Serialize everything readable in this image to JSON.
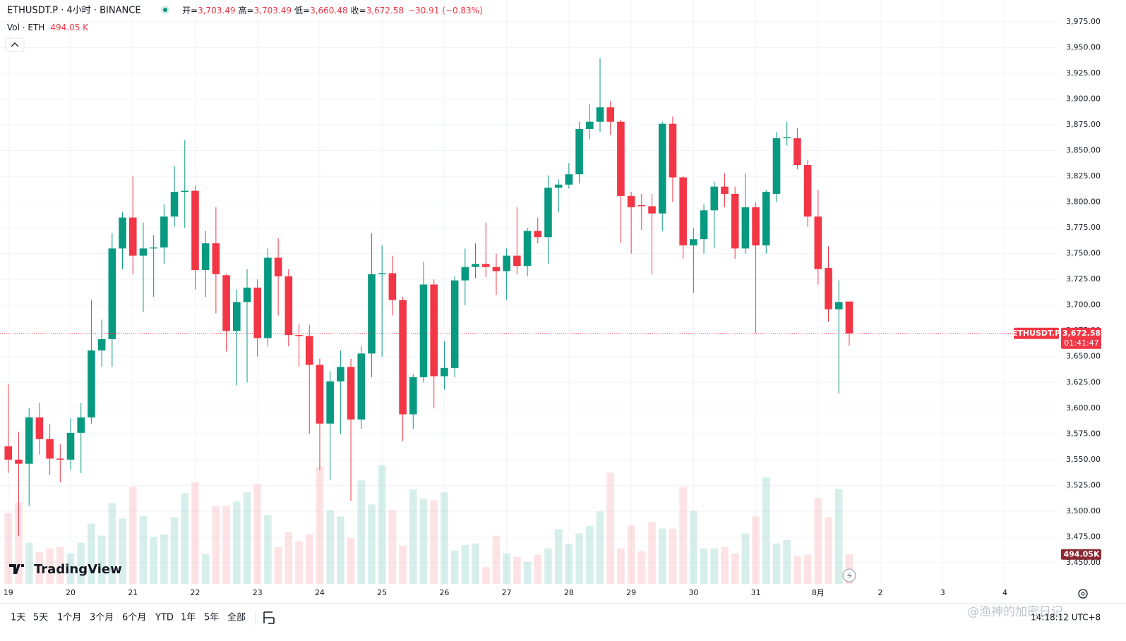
{
  "header": {
    "symbol": "ETHUSDT.P · 4小时 · BINANCE",
    "open_label": "开=",
    "open": "3,703.49",
    "high_label": "高=",
    "high": "3,703.49",
    "low_label": "低=",
    "low": "3,660.48",
    "close_label": "收=",
    "close": "3,672.58",
    "change": "−30.91 (−0.83%)",
    "vol_label": "Vol · ETH",
    "vol": "494.05 K"
  },
  "chart_data": {
    "type": "candlestick",
    "up_color": "#089981",
    "down_color": "#f23645",
    "open": [
      3563,
      3550,
      3546,
      3591,
      3570,
      3551,
      3550,
      3576,
      3591,
      3656,
      3667,
      3755,
      3785,
      3748,
      3755,
      3756,
      3786,
      3810,
      3811,
      3734,
      3760,
      3729,
      3675,
      3703,
      3717,
      3668,
      3746,
      3728,
      3671,
      3670,
      3642,
      3585,
      3626,
      3640,
      3589,
      3653,
      3730,
      3731,
      3705,
      3594,
      3630,
      3720,
      3631,
      3639,
      3724,
      3737,
      3740,
      3737,
      3733,
      3748,
      3738,
      3772,
      3766,
      3814,
      3817,
      3827,
      3871,
      3878,
      3892,
      3878,
      3806,
      3797,
      3796,
      3789,
      3876,
      3824,
      3758,
      3764,
      3792,
      3815,
      3808,
      3755,
      3795,
      3758,
      3808,
      3862,
      3862,
      3836,
      3786,
      3736,
      3696,
      3703.49
    ],
    "high": [
      3623,
      3577,
      3600,
      3605,
      3585,
      3565,
      3590,
      3605,
      3705,
      3686,
      3770,
      3790,
      3825,
      3780,
      3768,
      3798,
      3835,
      3860,
      3816,
      3772,
      3795,
      3730,
      3715,
      3735,
      3725,
      3755,
      3765,
      3735,
      3682,
      3681,
      3648,
      3636,
      3656,
      3648,
      3660,
      3770,
      3758,
      3748,
      3708,
      3633,
      3742,
      3725,
      3665,
      3728,
      3755,
      3760,
      3780,
      3750,
      3755,
      3795,
      3775,
      3785,
      3826,
      3822,
      3838,
      3878,
      3895,
      3940,
      3898,
      3880,
      3810,
      3808,
      3808,
      3878,
      3883,
      3825,
      3775,
      3798,
      3820,
      3828,
      3815,
      3828,
      3800,
      3812,
      3868,
      3878,
      3872,
      3841,
      3812,
      3757,
      3724,
      3703.49
    ],
    "low": [
      3537,
      3476,
      3505,
      3555,
      3535,
      3528,
      3540,
      3537,
      3585,
      3640,
      3640,
      3735,
      3730,
      3693,
      3708,
      3740,
      3776,
      3775,
      3715,
      3708,
      3692,
      3655,
      3622,
      3625,
      3650,
      3660,
      3690,
      3660,
      3640,
      3575,
      3540,
      3530,
      3575,
      3510,
      3580,
      3630,
      3650,
      3690,
      3568,
      3580,
      3625,
      3600,
      3618,
      3630,
      3700,
      3726,
      3727,
      3710,
      3705,
      3730,
      3728,
      3760,
      3740,
      3790,
      3813,
      3818,
      3861,
      3868,
      3865,
      3760,
      3750,
      3773,
      3730,
      3772,
      3800,
      3745,
      3712,
      3750,
      3755,
      3795,
      3745,
      3750,
      3673,
      3750,
      3800,
      3855,
      3832,
      3776,
      3720,
      3684,
      3614,
      3660.48
    ],
    "close": [
      3550,
      3546,
      3591,
      3570,
      3551,
      3550,
      3576,
      3591,
      3656,
      3667,
      3755,
      3785,
      3748,
      3755,
      3756,
      3786,
      3810,
      3811,
      3734,
      3760,
      3730,
      3675,
      3703,
      3717,
      3668,
      3746,
      3728,
      3671,
      3670,
      3642,
      3585,
      3626,
      3640,
      3589,
      3653,
      3730,
      3731,
      3705,
      3594,
      3630,
      3720,
      3631,
      3639,
      3724,
      3737,
      3740,
      3737,
      3733,
      3748,
      3738,
      3772,
      3766,
      3814,
      3817,
      3827,
      3871,
      3878,
      3892,
      3878,
      3806,
      3795,
      3796,
      3789,
      3876,
      3824,
      3758,
      3764,
      3792,
      3815,
      3808,
      3755,
      3795,
      3758,
      3810,
      3862,
      3863,
      3836,
      3786,
      3735,
      3696,
      3703,
      3672.58
    ],
    "volume": [
      1176,
      1352,
      682,
      529,
      588,
      612,
      506,
      682,
      1000,
      800,
      1341,
      1082,
      1611,
      1129,
      776,
      823,
      1105,
      1505,
      1682,
      494,
      1294,
      1294,
      1364,
      1517,
      1658,
      1141,
      612,
      858,
      706,
      823,
      1940,
      1223,
      1117,
      764,
      1717,
      1317,
      1964,
      1223,
      635,
      1564,
      1411,
      1388,
      1517,
      553,
      647,
      670,
      282,
      800,
      506,
      447,
      365,
      482,
      588,
      906,
      659,
      835,
      964,
      1200,
      1846,
      588,
      976,
      541,
      1023,
      917,
      917,
      1611,
      1211,
      588,
      588,
      612,
      506,
      835,
      1117,
      1764,
      670,
      729,
      459,
      482,
      1423,
      1105,
      1576,
      494.05
    ],
    "volume_label": "494.05K",
    "ylim": [
      3429.4,
      3996.2
    ],
    "yticks": [
      {
        "value": 3450,
        "label": "3,450.00"
      },
      {
        "value": 3475,
        "label": "3,475.00"
      },
      {
        "value": 3500,
        "label": "3,500.00"
      },
      {
        "value": 3525,
        "label": "3,525.00"
      },
      {
        "value": 3550,
        "label": "3,550.00"
      },
      {
        "value": 3575,
        "label": "3,575.00"
      },
      {
        "value": 3600,
        "label": "3,600.00"
      },
      {
        "value": 3625,
        "label": "3,625.00"
      },
      {
        "value": 3650,
        "label": "3,650.00"
      },
      {
        "value": 3675,
        "label": "3,675.00"
      },
      {
        "value": 3700,
        "label": "3,700.00"
      },
      {
        "value": 3725,
        "label": "3,725.00"
      },
      {
        "value": 3750,
        "label": "3,750.00"
      },
      {
        "value": 3775,
        "label": "3,775.00"
      },
      {
        "value": 3800,
        "label": "3,800.00"
      },
      {
        "value": 3825,
        "label": "3,825.00"
      },
      {
        "value": 3850,
        "label": "3,850.00"
      },
      {
        "value": 3875,
        "label": "3,875.00"
      },
      {
        "value": 3900,
        "label": "3,900.00"
      },
      {
        "value": 3925,
        "label": "3,925.00"
      },
      {
        "value": 3950,
        "label": "3,950.00"
      },
      {
        "value": 3975,
        "label": "3,975.00"
      }
    ],
    "xlim": [
      -0.8,
      101.2
    ],
    "xticks": [
      {
        "value": 0,
        "label": "19"
      },
      {
        "value": 6,
        "label": "20"
      },
      {
        "value": 12,
        "label": "21"
      },
      {
        "value": 18,
        "label": "22"
      },
      {
        "value": 24,
        "label": "23"
      },
      {
        "value": 30,
        "label": "24"
      },
      {
        "value": 36,
        "label": "25"
      },
      {
        "value": 42,
        "label": "26"
      },
      {
        "value": 48,
        "label": "27"
      },
      {
        "value": 54,
        "label": "28"
      },
      {
        "value": 60,
        "label": "29"
      },
      {
        "value": 66,
        "label": "30"
      },
      {
        "value": 72,
        "label": "31"
      },
      {
        "value": 78,
        "label": "8月"
      },
      {
        "value": 84,
        "label": "2"
      },
      {
        "value": 90,
        "label": "3"
      },
      {
        "value": 96,
        "label": "4"
      }
    ],
    "last_price": {
      "value": 3672.58,
      "label": "3,672.58"
    },
    "last_symbol": "ETHUSDT.P",
    "countdown": "01:41:47",
    "grid": true
  },
  "brand": "TradingView",
  "toolbar": [
    "1天",
    "5天",
    "1个月",
    "3个月",
    "6个月",
    "YTD",
    "1年",
    "5年",
    "全部"
  ],
  "clock": "14:18:12 UTC+8",
  "watermark": "@渔神的加密日记"
}
